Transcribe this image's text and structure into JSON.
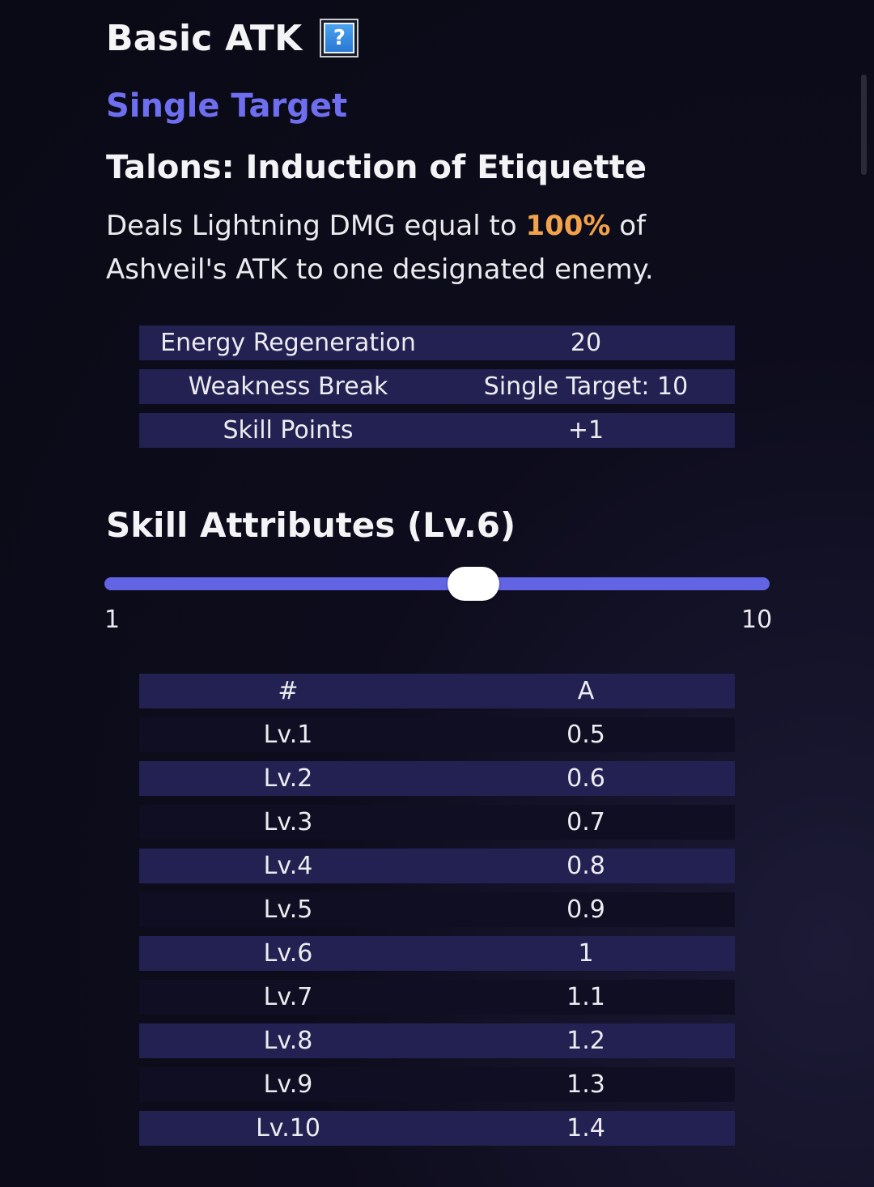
{
  "header": {
    "title": "Basic ATK",
    "help_icon": "question-mark-icon"
  },
  "subtitle": "Single Target",
  "skill_name": "Talons: Induction of Etiquette",
  "description": {
    "before": "Deals Lightning DMG equal to ",
    "highlight": "100%",
    "after": " of Ashveil's ATK to one designated enemy."
  },
  "info_table": [
    {
      "label": "Energy Regeneration",
      "value": "20"
    },
    {
      "label": "Weakness Break",
      "value": "Single Target: 10"
    },
    {
      "label": "Skill Points",
      "value": "+1"
    }
  ],
  "attributes": {
    "title": "Skill Attributes (Lv.6)",
    "slider": {
      "min": 1,
      "max": 10,
      "value": 6,
      "min_label": "1",
      "max_label": "10"
    },
    "columns": [
      "#",
      "A"
    ],
    "rows": [
      {
        "level": "Lv.1",
        "a": "0.5"
      },
      {
        "level": "Lv.2",
        "a": "0.6"
      },
      {
        "level": "Lv.3",
        "a": "0.7"
      },
      {
        "level": "Lv.4",
        "a": "0.8"
      },
      {
        "level": "Lv.5",
        "a": "0.9"
      },
      {
        "level": "Lv.6",
        "a": "1"
      },
      {
        "level": "Lv.7",
        "a": "1.1"
      },
      {
        "level": "Lv.8",
        "a": "1.2"
      },
      {
        "level": "Lv.9",
        "a": "1.3"
      },
      {
        "level": "Lv.10",
        "a": "1.4"
      }
    ]
  },
  "colors": {
    "accent": "#6264e4",
    "highlight": "#f3a24c",
    "row_dark": "#222152"
  }
}
